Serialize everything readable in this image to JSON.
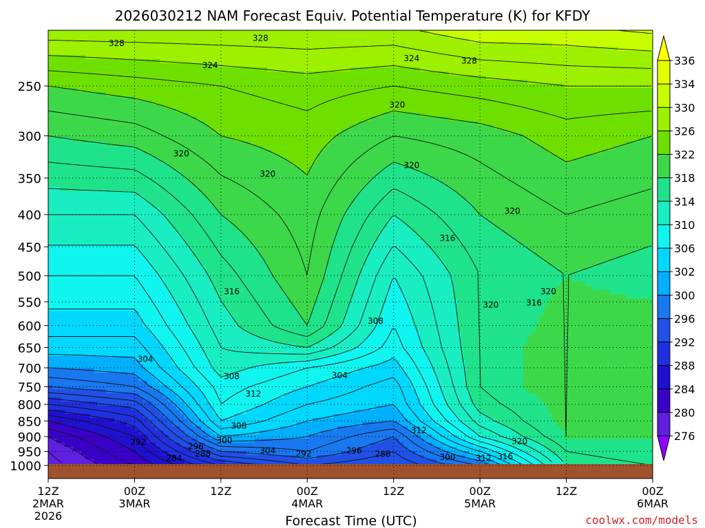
{
  "chart_data": {
    "type": "heatmap",
    "title": "2026030212 NAM Forecast Equiv. Potential Temperature (K) for KFDY",
    "xlabel": "Forecast Time (UTC)",
    "credit": "coolwx.com/models",
    "x_range_hours": [
      0,
      84
    ],
    "y_range_hpa": [
      200,
      1000
    ],
    "y_scale": "log-pressure (inverted)",
    "x_ticks": [
      {
        "hour": 0,
        "line1": "12Z",
        "line2": "2MAR",
        "line3": "2026"
      },
      {
        "hour": 12,
        "line1": "00Z",
        "line2": "3MAR",
        "line3": ""
      },
      {
        "hour": 24,
        "line1": "12Z",
        "line2": "",
        "line3": ""
      },
      {
        "hour": 36,
        "line1": "00Z",
        "line2": "4MAR",
        "line3": ""
      },
      {
        "hour": 48,
        "line1": "12Z",
        "line2": "",
        "line3": ""
      },
      {
        "hour": 60,
        "line1": "00Z",
        "line2": "5MAR",
        "line3": ""
      },
      {
        "hour": 72,
        "line1": "12Z",
        "line2": "",
        "line3": ""
      },
      {
        "hour": 84,
        "line1": "00Z",
        "line2": "6MAR",
        "line3": ""
      }
    ],
    "y_ticks": [
      250,
      300,
      350,
      400,
      450,
      500,
      550,
      600,
      650,
      700,
      750,
      800,
      850,
      900,
      950,
      1000
    ],
    "grid": true,
    "legend": {
      "position": "right",
      "labels": [
        336,
        334,
        330,
        326,
        322,
        318,
        314,
        310,
        306,
        302,
        300,
        296,
        292,
        288,
        284,
        280,
        276
      ],
      "colors": [
        "#ffff00",
        "#e6ff00",
        "#c8ff00",
        "#9cf000",
        "#6ee000",
        "#3cd84a",
        "#1fe38a",
        "#18eec2",
        "#10f5f0",
        "#00d8ff",
        "#00b0ff",
        "#1878f0",
        "#2050e6",
        "#2030e0",
        "#2010d0",
        "#3a00c8",
        "#6020e0",
        "#9000ff"
      ]
    },
    "shading_levels": [
      276,
      280,
      284,
      288,
      292,
      296,
      300,
      302,
      306,
      310,
      314,
      318,
      322,
      326,
      330,
      334,
      336
    ],
    "field_profiles": [
      {
        "hour": 0,
        "p_hpa": [
          1000,
          950,
          900,
          850,
          800,
          750,
          700,
          650,
          600,
          500,
          400,
          300,
          250,
          200
        ],
        "theta_e": [
          277,
          278,
          280,
          284,
          290,
          296,
          300,
          303,
          305,
          308,
          312,
          318,
          322,
          330
        ]
      },
      {
        "hour": 12,
        "p_hpa": [
          1000,
          950,
          900,
          850,
          800,
          750,
          700,
          650,
          600,
          500,
          400,
          300,
          250,
          200
        ],
        "theta_e": [
          282,
          284,
          286,
          289,
          293,
          298,
          301,
          303,
          305,
          308,
          312,
          319,
          323,
          330
        ]
      },
      {
        "hour": 24,
        "p_hpa": [
          1000,
          950,
          900,
          850,
          800,
          750,
          700,
          650,
          600,
          500,
          400,
          300,
          250,
          200
        ],
        "theta_e": [
          290,
          296,
          302,
          306,
          308,
          309,
          311,
          312,
          313,
          315,
          318,
          322,
          324,
          330
        ]
      },
      {
        "hour": 36,
        "p_hpa": [
          1000,
          950,
          900,
          850,
          800,
          750,
          700,
          650,
          600,
          500,
          400,
          300,
          250,
          200
        ],
        "theta_e": [
          294,
          298,
          300,
          302,
          304,
          306,
          308,
          314,
          318,
          320,
          321,
          323,
          325,
          330
        ]
      },
      {
        "hour": 48,
        "p_hpa": [
          1000,
          950,
          900,
          850,
          800,
          750,
          700,
          650,
          600,
          500,
          400,
          300,
          250,
          200
        ],
        "theta_e": [
          292,
          294,
          296,
          300,
          302,
          303,
          305,
          307,
          308,
          310,
          314,
          320,
          324,
          330
        ]
      },
      {
        "hour": 60,
        "p_hpa": [
          1000,
          950,
          900,
          850,
          800,
          750,
          700,
          650,
          600,
          500,
          400,
          300,
          250,
          200
        ],
        "theta_e": [
          298,
          304,
          310,
          313,
          315,
          316,
          316,
          316,
          316,
          316,
          318,
          321,
          325,
          332
        ]
      },
      {
        "hour": 72,
        "p_hpa": [
          1000,
          950,
          900,
          850,
          800,
          750,
          700,
          650,
          600,
          500,
          400,
          300,
          250,
          200
        ],
        "theta_e": [
          314,
          316,
          318,
          319,
          319,
          320,
          320,
          320,
          319,
          318,
          320,
          323,
          326,
          332
        ]
      },
      {
        "hour": 84,
        "p_hpa": [
          1000,
          950,
          900,
          850,
          800,
          750,
          700,
          650,
          600,
          500,
          400,
          300,
          250,
          200
        ],
        "theta_e": [
          316,
          318,
          318,
          319,
          319,
          319,
          320,
          320,
          319,
          317,
          319,
          322,
          326,
          333
        ]
      }
    ],
    "contour_labels": [
      {
        "text": "328",
        "hour": 9.5,
        "p": 214
      },
      {
        "text": "328",
        "hour": 29.5,
        "p": 210
      },
      {
        "text": "324",
        "hour": 22.5,
        "p": 232
      },
      {
        "text": "324",
        "hour": 50.5,
        "p": 226
      },
      {
        "text": "328",
        "hour": 58.5,
        "p": 228
      },
      {
        "text": "320",
        "hour": 48.5,
        "p": 268
      },
      {
        "text": "320",
        "hour": 18.5,
        "p": 320
      },
      {
        "text": "320",
        "hour": 30.5,
        "p": 345
      },
      {
        "text": "320",
        "hour": 50.5,
        "p": 334
      },
      {
        "text": "320",
        "hour": 64.5,
        "p": 395
      },
      {
        "text": "316",
        "hour": 55.5,
        "p": 436
      },
      {
        "text": "316",
        "hour": 25.5,
        "p": 530
      },
      {
        "text": "320",
        "hour": 61.5,
        "p": 556
      },
      {
        "text": "320",
        "hour": 69.5,
        "p": 530
      },
      {
        "text": "316",
        "hour": 67.5,
        "p": 552
      },
      {
        "text": "308",
        "hour": 45.5,
        "p": 590
      },
      {
        "text": "304",
        "hour": 13.5,
        "p": 678
      },
      {
        "text": "308",
        "hour": 25.5,
        "p": 722
      },
      {
        "text": "304",
        "hour": 40.5,
        "p": 720
      },
      {
        "text": "312",
        "hour": 28.5,
        "p": 770
      },
      {
        "text": "308",
        "hour": 26.5,
        "p": 865
      },
      {
        "text": "312",
        "hour": 51.5,
        "p": 880
      },
      {
        "text": "292",
        "hour": 12.5,
        "p": 918
      },
      {
        "text": "300",
        "hour": 24.5,
        "p": 912
      },
      {
        "text": "296",
        "hour": 20.5,
        "p": 933
      },
      {
        "text": "288",
        "hour": 21.5,
        "p": 958
      },
      {
        "text": "304",
        "hour": 30.5,
        "p": 948
      },
      {
        "text": "292",
        "hour": 35.5,
        "p": 958
      },
      {
        "text": "296",
        "hour": 42.5,
        "p": 948
      },
      {
        "text": "288",
        "hour": 46.5,
        "p": 960
      },
      {
        "text": "284",
        "hour": 17.5,
        "p": 974
      },
      {
        "text": "300",
        "hour": 55.5,
        "p": 970
      },
      {
        "text": "312",
        "hour": 60.5,
        "p": 974
      },
      {
        "text": "316",
        "hour": 63.5,
        "p": 968
      },
      {
        "text": "320",
        "hour": 65.5,
        "p": 916
      }
    ]
  }
}
